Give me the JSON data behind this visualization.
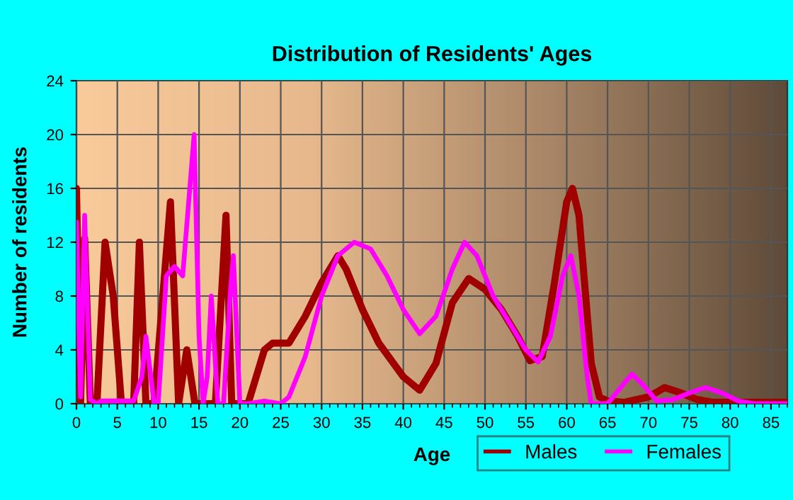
{
  "chart_data": {
    "type": "line",
    "title": "Distribution of Residents' Ages",
    "xlabel": "Age",
    "ylabel": "Number of residents",
    "xlim": [
      0,
      87
    ],
    "xticks": [
      0,
      5,
      10,
      15,
      20,
      25,
      30,
      35,
      40,
      45,
      50,
      55,
      60,
      65,
      70,
      75,
      80,
      85
    ],
    "ylim": [
      0,
      24
    ],
    "yticks": [
      0,
      4,
      8,
      12,
      16,
      20,
      24
    ],
    "grid": true,
    "legend": "bottom right",
    "line_style": "solid",
    "marker": "none",
    "series": [
      {
        "name": "Males",
        "color": "#a00000",
        "x": [
          0,
          0.5,
          1,
          1.7,
          2.5,
          3.5,
          4.5,
          5.5,
          7,
          7.7,
          8.5,
          9.5,
          11.5,
          12.5,
          13.5,
          14.5,
          17,
          18.3,
          19,
          21,
          23,
          24,
          26,
          28,
          30,
          32,
          33,
          35,
          37,
          40,
          42,
          44,
          46,
          48,
          50,
          52,
          54,
          55.5,
          57,
          58.5,
          60,
          60.7,
          61.5,
          63,
          64,
          65,
          67,
          70,
          72,
          74,
          76,
          78,
          87
        ],
        "values": [
          16,
          0,
          12.3,
          0,
          0,
          12,
          8,
          0,
          0,
          12,
          0,
          0,
          15,
          0,
          4,
          0,
          0,
          14,
          0,
          0,
          4,
          4.5,
          4.5,
          6.5,
          9,
          11,
          10,
          7,
          4.5,
          2,
          1,
          3,
          7.5,
          9.3,
          8.5,
          7,
          5,
          3.2,
          3.5,
          9,
          15,
          16,
          14,
          3,
          0.5,
          0.2,
          0.1,
          0.5,
          1.2,
          0.8,
          0.3,
          0.1,
          0.1
        ]
      },
      {
        "name": "Females",
        "color": "#ff00ff",
        "x": [
          0,
          0.5,
          1,
          1.7,
          2.5,
          3,
          7,
          8,
          8.5,
          9.5,
          10,
          11,
          12,
          13,
          14,
          14.4,
          15,
          15.5,
          16,
          16.5,
          17.3,
          18,
          18.8,
          19.2,
          20,
          21,
          23,
          25,
          26,
          28,
          30,
          32,
          34,
          36,
          38,
          40,
          42,
          44,
          46,
          47.5,
          49,
          51,
          53,
          55,
          56.5,
          58,
          59.5,
          60.5,
          61.5,
          62.5,
          63,
          65,
          67,
          68,
          69.5,
          71,
          73,
          75,
          77,
          79,
          81,
          83,
          87
        ],
        "values": [
          13.5,
          0.5,
          14,
          0.3,
          0,
          0.2,
          0.2,
          2,
          5,
          0,
          0,
          9.5,
          10.2,
          9.5,
          17,
          20,
          5,
          0,
          2,
          8,
          0,
          0,
          8,
          11,
          0,
          0,
          0.2,
          0,
          0.5,
          3.5,
          8,
          11,
          12,
          11.5,
          9.5,
          7,
          5.2,
          6.5,
          10,
          12,
          11,
          8,
          6,
          4,
          3.1,
          5,
          9.5,
          11,
          8,
          2,
          0,
          0,
          1.5,
          2.2,
          1.3,
          0.2,
          0.3,
          0.8,
          1.2,
          0.8,
          0.2,
          0,
          0
        ]
      }
    ]
  }
}
